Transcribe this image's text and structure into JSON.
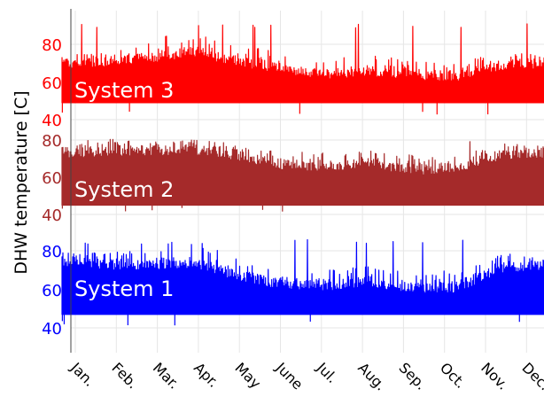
{
  "chart_data": {
    "type": "line",
    "ylabel": "DHW temperature [C]",
    "x_ticks": [
      "Jan.",
      "Feb.",
      "Mar.",
      "Apr.",
      "May",
      "June",
      "Jul.",
      "Aug.",
      "Sep.",
      "Oct.",
      "Nov.",
      "Dec."
    ],
    "grid": true,
    "y_ticks": [
      40,
      60,
      80
    ],
    "panels": [
      {
        "name": "System 3",
        "color": "#ff0000",
        "ylim": [
          40,
          92
        ],
        "base": 49,
        "upper_monthly": [
          73,
          74,
          76,
          79,
          74,
          70,
          67,
          69,
          67,
          66,
          72,
          73
        ],
        "spike_monthly": [
          74,
          76,
          84,
          87,
          81,
          75,
          72,
          74,
          72,
          70,
          76,
          74
        ],
        "min": 42,
        "max": 91
      },
      {
        "name": "System 2",
        "color": "#a52a2a",
        "ylim": [
          40,
          82
        ],
        "base": 45,
        "upper_monthly": [
          76,
          77,
          77,
          78,
          75,
          70,
          69,
          71,
          67,
          68,
          75,
          76
        ],
        "spike_monthly": [
          77,
          79,
          80,
          80,
          78,
          74,
          73,
          75,
          72,
          72,
          78,
          78
        ],
        "min": 41,
        "max": 81
      },
      {
        "name": "System 1",
        "color": "#0000ff",
        "ylim": [
          38,
          88
        ],
        "base": 47,
        "upper_monthly": [
          77,
          76,
          76,
          77,
          70,
          66,
          65,
          67,
          64,
          64,
          74,
          76
        ],
        "spike_monthly": [
          79,
          79,
          84,
          86,
          76,
          71,
          70,
          72,
          70,
          70,
          79,
          79
        ],
        "min": 41,
        "max": 86
      }
    ]
  }
}
